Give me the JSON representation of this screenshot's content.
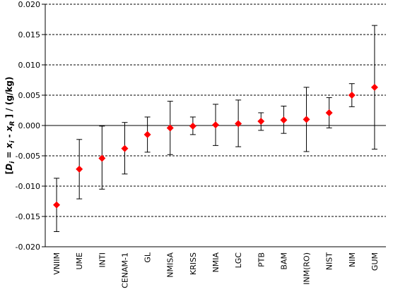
{
  "chart_data": {
    "type": "scatter",
    "title": "",
    "ylabel": {
      "pre": "[",
      "d": "D",
      "i1": "i",
      "mid": " = ",
      "x1": "x",
      "i2": "i",
      "minus": " - ",
      "x2": "x",
      "r": "R",
      "post": " ] / (g/kg)"
    },
    "ylim": [
      -0.02,
      0.02
    ],
    "yticks": [
      "0.020",
      "0.015",
      "0.010",
      "0.005",
      "0.000",
      "-0.005",
      "-0.010",
      "-0.015",
      "-0.020"
    ],
    "ytick_values": [
      0.02,
      0.015,
      0.01,
      0.005,
      0.0,
      -0.005,
      -0.01,
      -0.015,
      -0.02
    ],
    "grid": "horizontal dashed",
    "marker_color": "#ff0000",
    "marker": "diamond",
    "categories": [
      "VNIIM",
      "UME",
      "INTI",
      "CENAM-1",
      "GL",
      "NMISA",
      "KRISS",
      "NMIA",
      "LGC",
      "PTB",
      "BAM",
      "INM(RO)",
      "NIST",
      "NIM",
      "GUM"
    ],
    "values": [
      -0.0131,
      -0.0072,
      -0.0054,
      -0.0038,
      -0.0015,
      -0.0004,
      -0.0001,
      0.0001,
      0.0003,
      0.0007,
      0.0009,
      0.001,
      0.0021,
      0.005,
      0.0063
    ],
    "err_low": [
      -0.0175,
      -0.0121,
      -0.0105,
      -0.008,
      -0.0044,
      -0.0048,
      -0.0015,
      -0.0033,
      -0.0035,
      -0.0008,
      -0.0013,
      -0.0043,
      -0.0004,
      0.0031,
      -0.0039
    ],
    "err_high": [
      -0.0087,
      -0.0023,
      -0.0001,
      0.0005,
      0.0014,
      0.004,
      0.0014,
      0.0035,
      0.0042,
      0.0021,
      0.0032,
      0.0063,
      0.0046,
      0.0069,
      0.0165
    ]
  }
}
